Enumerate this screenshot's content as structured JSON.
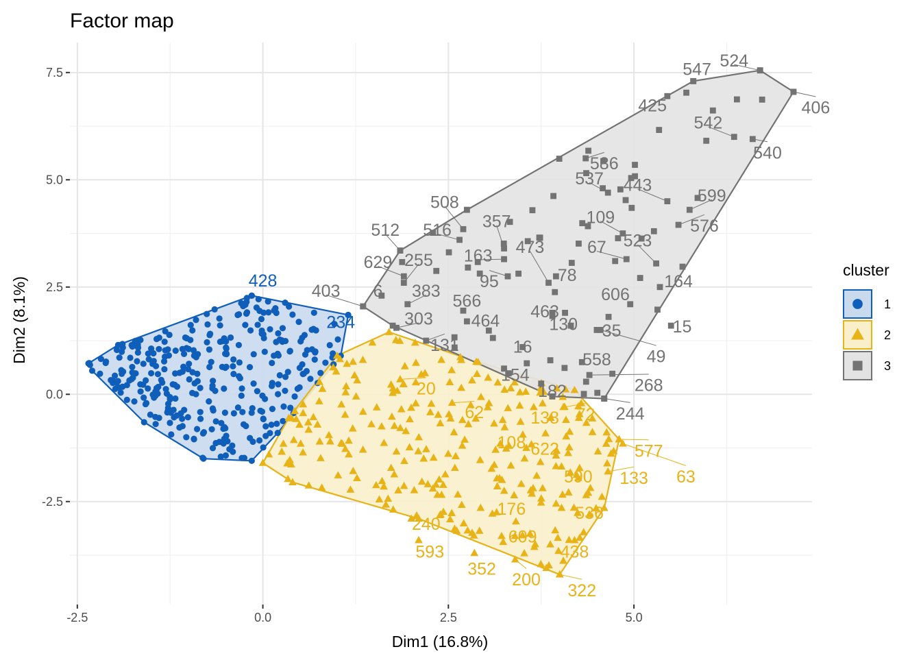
{
  "chart_data": {
    "type": "scatter",
    "title": "Factor map",
    "xlabel": "Dim1 (16.8%)",
    "ylabel": "Dim2 (8.1%)",
    "xlim": [
      -2.6,
      7.4
    ],
    "ylim": [
      -4.9,
      8.2
    ],
    "xticks": [
      -2.5,
      0.0,
      2.5,
      5.0
    ],
    "xtick_labels": [
      "-2.5",
      "0.0",
      "2.5",
      "5.0"
    ],
    "yticks": [
      -2.5,
      0.0,
      2.5,
      5.0,
      7.5
    ],
    "ytick_labels": [
      "-2.5",
      "0.0",
      "2.5",
      "5.0",
      "7.5"
    ],
    "grid": true,
    "legend": {
      "title": "cluster",
      "position": "right",
      "entries": [
        {
          "label": "1",
          "color": "#0F5EBA",
          "shape": "circle"
        },
        {
          "label": "2",
          "color": "#E8B317",
          "shape": "triangle"
        },
        {
          "label": "3",
          "color": "#737373",
          "shape": "square"
        }
      ]
    },
    "series": [
      {
        "name": "1",
        "color": "#0F5EBA",
        "fill": "#C9DAEE",
        "shape": "circle",
        "hull": [
          [
            -2.35,
            0.72
          ],
          [
            -1.95,
            1.15
          ],
          [
            -0.65,
            1.98
          ],
          [
            -0.15,
            2.3
          ],
          [
            1.15,
            1.85
          ],
          [
            1.05,
            0.9
          ],
          [
            0.2,
            -0.9
          ],
          [
            -0.15,
            -1.55
          ],
          [
            -0.8,
            -1.5
          ],
          [
            -1.6,
            -0.65
          ],
          [
            -2.3,
            0.55
          ]
        ],
        "labels": [
          {
            "text": "428",
            "x": -0.15,
            "y": 2.3,
            "lx": 0.0,
            "ly": 2.62
          },
          {
            "text": "234",
            "x": 1.15,
            "y": 1.85,
            "lx": 1.05,
            "ly": 1.65
          }
        ]
      },
      {
        "name": "2",
        "color": "#E8B317",
        "fill": "#FAEFCB",
        "shape": "triangle",
        "hull": [
          [
            1.7,
            1.45
          ],
          [
            2.9,
            0.75
          ],
          [
            4.2,
            0.1
          ],
          [
            4.8,
            -1.05
          ],
          [
            4.6,
            -2.65
          ],
          [
            4.0,
            -4.2
          ],
          [
            2.1,
            -2.9
          ],
          [
            0.4,
            -2.05
          ],
          [
            0.0,
            -1.6
          ],
          [
            0.35,
            -0.55
          ],
          [
            1.0,
            0.9
          ]
        ],
        "labels": [
          {
            "text": "20",
            "x": 1.85,
            "y": 0.35,
            "lx": 2.2,
            "ly": 0.1
          },
          {
            "text": "62",
            "x": 2.55,
            "y": -0.2,
            "lx": 2.85,
            "ly": -0.45
          },
          {
            "text": "138",
            "x": 3.65,
            "y": -0.3,
            "lx": 3.8,
            "ly": -0.58
          },
          {
            "text": "72",
            "x": 4.05,
            "y": -0.3,
            "lx": 4.35,
            "ly": -0.5
          },
          {
            "text": "108",
            "x": 3.2,
            "y": -1.15,
            "lx": 3.35,
            "ly": -1.15
          },
          {
            "text": "622",
            "x": 3.55,
            "y": -1.25,
            "lx": 3.8,
            "ly": -1.3
          },
          {
            "text": "577",
            "x": 4.8,
            "y": -1.05,
            "lx": 5.2,
            "ly": -1.35
          },
          {
            "text": "63",
            "x": 4.85,
            "y": -1.15,
            "lx": 5.7,
            "ly": -1.95
          },
          {
            "text": "590",
            "x": 4.25,
            "y": -1.95,
            "lx": 4.25,
            "ly": -1.95
          },
          {
            "text": "133",
            "x": 4.65,
            "y": -1.8,
            "lx": 5.0,
            "ly": -1.98
          },
          {
            "text": "176",
            "x": 3.15,
            "y": -2.75,
            "lx": 3.35,
            "ly": -2.7
          },
          {
            "text": "536",
            "x": 4.4,
            "y": -2.8,
            "lx": 4.4,
            "ly": -2.8
          },
          {
            "text": "240",
            "x": 2.0,
            "y": -2.9,
            "lx": 2.2,
            "ly": -3.05
          },
          {
            "text": "609",
            "x": 3.6,
            "y": -3.25,
            "lx": 3.5,
            "ly": -3.35
          },
          {
            "text": "438",
            "x": 4.2,
            "y": -3.4,
            "lx": 4.2,
            "ly": -3.7
          },
          {
            "text": "593",
            "x": 2.1,
            "y": -3.4,
            "lx": 2.25,
            "ly": -3.7
          },
          {
            "text": "352",
            "x": 2.85,
            "y": -3.7,
            "lx": 2.95,
            "ly": -4.1
          },
          {
            "text": "200",
            "x": 3.4,
            "y": -3.85,
            "lx": 3.55,
            "ly": -4.35
          },
          {
            "text": "322",
            "x": 4.0,
            "y": -4.2,
            "lx": 4.3,
            "ly": -4.6
          }
        ]
      },
      {
        "name": "3",
        "color": "#737373",
        "fill": "#E3E3E3",
        "shape": "square",
        "hull": [
          [
            1.35,
            2.05
          ],
          [
            1.85,
            3.35
          ],
          [
            2.75,
            4.3
          ],
          [
            5.8,
            7.3
          ],
          [
            6.7,
            7.55
          ],
          [
            7.15,
            7.05
          ],
          [
            4.6,
            -0.1
          ],
          [
            3.9,
            -0.05
          ],
          [
            1.75,
            1.6
          ]
        ],
        "labels": [
          {
            "text": "547",
            "x": 5.8,
            "y": 7.3,
            "lx": 5.85,
            "ly": 7.55
          },
          {
            "text": "524",
            "x": 6.7,
            "y": 7.55,
            "lx": 6.35,
            "ly": 7.75
          },
          {
            "text": "406",
            "x": 7.15,
            "y": 7.05,
            "lx": 7.45,
            "ly": 6.65
          },
          {
            "text": "425",
            "x": 5.45,
            "y": 6.95,
            "lx": 5.25,
            "ly": 6.7
          },
          {
            "text": "542",
            "x": 6.35,
            "y": 6.0,
            "lx": 6.0,
            "ly": 6.3
          },
          {
            "text": "540",
            "x": 6.6,
            "y": 5.95,
            "lx": 6.8,
            "ly": 5.6
          },
          {
            "text": "586",
            "x": 4.35,
            "y": 5.5,
            "lx": 4.6,
            "ly": 5.35
          },
          {
            "text": "537",
            "x": 4.65,
            "y": 4.7,
            "lx": 4.4,
            "ly": 5.0
          },
          {
            "text": "443",
            "x": 5.45,
            "y": 4.5,
            "lx": 5.05,
            "ly": 4.85
          },
          {
            "text": "599",
            "x": 5.75,
            "y": 4.3,
            "lx": 6.05,
            "ly": 4.6
          },
          {
            "text": "576",
            "x": 5.6,
            "y": 3.95,
            "lx": 5.95,
            "ly": 3.9
          },
          {
            "text": "508",
            "x": 2.7,
            "y": 3.85,
            "lx": 2.45,
            "ly": 4.45
          },
          {
            "text": "357",
            "x": 3.25,
            "y": 3.4,
            "lx": 3.15,
            "ly": 4.0
          },
          {
            "text": "512",
            "x": 1.85,
            "y": 3.35,
            "lx": 1.65,
            "ly": 3.8
          },
          {
            "text": "516",
            "x": 2.65,
            "y": 3.6,
            "lx": 2.35,
            "ly": 3.8
          },
          {
            "text": "109",
            "x": 4.85,
            "y": 3.75,
            "lx": 4.55,
            "ly": 4.1
          },
          {
            "text": "163",
            "x": 3.25,
            "y": 3.15,
            "lx": 2.9,
            "ly": 3.2
          },
          {
            "text": "473",
            "x": 3.85,
            "y": 2.6,
            "lx": 3.6,
            "ly": 3.4
          },
          {
            "text": "67",
            "x": 4.9,
            "y": 3.15,
            "lx": 4.5,
            "ly": 3.4
          },
          {
            "text": "523",
            "x": 5.3,
            "y": 3.05,
            "lx": 5.05,
            "ly": 3.55
          },
          {
            "text": "629",
            "x": 1.9,
            "y": 2.75,
            "lx": 1.55,
            "ly": 3.05
          },
          {
            "text": "255",
            "x": 1.9,
            "y": 2.6,
            "lx": 2.1,
            "ly": 3.1
          },
          {
            "text": "95",
            "x": 3.3,
            "y": 2.75,
            "lx": 3.05,
            "ly": 2.6
          },
          {
            "text": "78",
            "x": 3.95,
            "y": 2.75,
            "lx": 4.1,
            "ly": 2.75
          },
          {
            "text": "164",
            "x": 5.35,
            "y": 2.5,
            "lx": 5.6,
            "ly": 2.6
          },
          {
            "text": "403",
            "x": 1.35,
            "y": 2.05,
            "lx": 0.85,
            "ly": 2.38
          },
          {
            "text": "6",
            "x": 1.6,
            "y": 2.3,
            "lx": 1.55,
            "ly": 2.38
          },
          {
            "text": "383",
            "x": 1.95,
            "y": 2.1,
            "lx": 2.2,
            "ly": 2.38
          },
          {
            "text": "566",
            "x": 2.7,
            "y": 1.95,
            "lx": 2.75,
            "ly": 2.15
          },
          {
            "text": "606",
            "x": 4.95,
            "y": 2.1,
            "lx": 4.75,
            "ly": 2.3
          },
          {
            "text": "463",
            "x": 3.9,
            "y": 1.9,
            "lx": 3.8,
            "ly": 1.9
          },
          {
            "text": "303",
            "x": 1.8,
            "y": 1.55,
            "lx": 2.1,
            "ly": 1.73
          },
          {
            "text": "464",
            "x": 2.75,
            "y": 1.7,
            "lx": 3.0,
            "ly": 1.68
          },
          {
            "text": "130",
            "x": 4.15,
            "y": 1.6,
            "lx": 4.05,
            "ly": 1.6
          },
          {
            "text": "35",
            "x": 4.5,
            "y": 1.5,
            "lx": 4.7,
            "ly": 1.45
          },
          {
            "text": "15",
            "x": 5.5,
            "y": 1.6,
            "lx": 5.65,
            "ly": 1.55
          },
          {
            "text": "131",
            "x": 2.2,
            "y": 1.25,
            "lx": 2.45,
            "ly": 1.12
          },
          {
            "text": "16",
            "x": 3.5,
            "y": 1.1,
            "lx": 3.5,
            "ly": 1.08
          },
          {
            "text": "49",
            "x": 4.55,
            "y": 1.5,
            "lx": 5.3,
            "ly": 0.85
          },
          {
            "text": "558",
            "x": 4.3,
            "y": 0.75,
            "lx": 4.5,
            "ly": 0.78
          },
          {
            "text": "154",
            "x": 3.25,
            "y": 0.6,
            "lx": 3.4,
            "ly": 0.42
          },
          {
            "text": "182",
            "x": 3.75,
            "y": 0.25,
            "lx": 3.9,
            "ly": 0.05
          },
          {
            "text": "268",
            "x": 4.4,
            "y": 0.45,
            "lx": 5.2,
            "ly": 0.18
          },
          {
            "text": "244",
            "x": 4.6,
            "y": -0.1,
            "lx": 4.95,
            "ly": -0.48
          }
        ]
      }
    ]
  }
}
